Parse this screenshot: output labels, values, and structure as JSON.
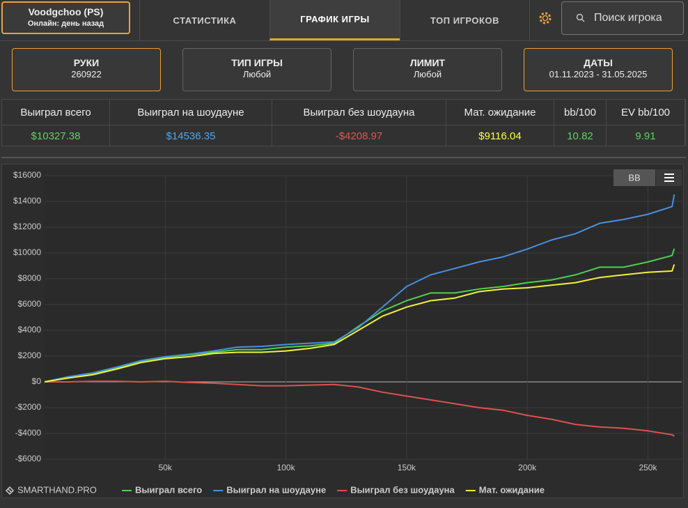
{
  "header": {
    "player": "Voodgchoo (PS)",
    "status": "Онлайн: день назад",
    "tabs": [
      "СТАТИСТИКА",
      "ГРАФИК ИГРЫ",
      "ТОП ИГРОКОВ"
    ],
    "search": "Поиск игрока"
  },
  "filters": [
    {
      "title": "РУКИ",
      "value": "260922"
    },
    {
      "title": "ТИП ИГРЫ",
      "value": "Любой"
    },
    {
      "title": "ЛИМИТ",
      "value": "Любой"
    },
    {
      "title": "ДАТЫ",
      "value": "01.11.2023 - 31.05.2025"
    }
  ],
  "table": {
    "headers": [
      "Выиграл всего",
      "Выиграл на шоудауне",
      "Выиграл без шоудауна",
      "Мат. ожидание",
      "bb/100",
      "EV bb/100"
    ],
    "values": [
      "$10327.38",
      "$14536.35",
      "-$4208.97",
      "$9116.04",
      "10.82",
      "9.91"
    ]
  },
  "controls": {
    "toggle": "BB"
  },
  "watermark": "SMARTHAND.PRO",
  "chart_data": {
    "type": "line",
    "x": [
      0,
      10000,
      20000,
      30000,
      40000,
      50000,
      60000,
      70000,
      80000,
      90000,
      100000,
      110000,
      120000,
      130000,
      140000,
      150000,
      160000,
      170000,
      180000,
      190000,
      200000,
      210000,
      220000,
      230000,
      240000,
      250000,
      260000,
      260922
    ],
    "series": [
      {
        "name": "Выиграл всего",
        "color": "#4fd14f",
        "values": [
          0,
          400,
          650,
          1100,
          1600,
          1900,
          2100,
          2300,
          2500,
          2500,
          2700,
          2800,
          3000,
          4300,
          5500,
          6300,
          6900,
          6900,
          7200,
          7400,
          7700,
          7900,
          8300,
          8900,
          8900,
          9300,
          9800,
          10327.38
        ]
      },
      {
        "name": "Выиграл на шоудауне",
        "color": "#4a8fe0",
        "values": [
          0,
          400,
          700,
          1150,
          1650,
          1950,
          2150,
          2400,
          2700,
          2750,
          2900,
          3000,
          3100,
          4200,
          5800,
          7400,
          8300,
          8800,
          9300,
          9700,
          10300,
          11000,
          11500,
          12300,
          12600,
          13000,
          13600,
          14536.35
        ]
      },
      {
        "name": "Выиграл без шоудауна",
        "color": "#e05050",
        "values": [
          0,
          0,
          50,
          50,
          0,
          50,
          -50,
          -100,
          -200,
          -300,
          -300,
          -250,
          -200,
          -400,
          -800,
          -1100,
          -1400,
          -1700,
          -2000,
          -2200,
          -2600,
          -2900,
          -3300,
          -3500,
          -3600,
          -3800,
          -4100,
          -4208.97
        ]
      },
      {
        "name": "Мат. ожидание",
        "color": "#f2f23c",
        "values": [
          0,
          300,
          550,
          1000,
          1500,
          1800,
          1950,
          2200,
          2300,
          2300,
          2400,
          2600,
          2900,
          4000,
          5100,
          5800,
          6300,
          6500,
          7000,
          7200,
          7300,
          7500,
          7700,
          8100,
          8300,
          8500,
          8600,
          9116.04
        ]
      }
    ],
    "xlim": [
      0,
      264000
    ],
    "xticks": [
      {
        "value": 50000,
        "label": "50k"
      },
      {
        "value": 100000,
        "label": "100k"
      },
      {
        "value": 150000,
        "label": "150k"
      },
      {
        "value": 200000,
        "label": "200k"
      },
      {
        "value": 250000,
        "label": "250k"
      }
    ],
    "ylim": [
      -6000,
      16000
    ],
    "yticks": [
      {
        "value": -6000,
        "label": "-$6000"
      },
      {
        "value": -4000,
        "label": "-$4000"
      },
      {
        "value": -2000,
        "label": "-$2000"
      },
      {
        "value": 0,
        "label": "$0"
      },
      {
        "value": 2000,
        "label": "$2000"
      },
      {
        "value": 4000,
        "label": "$4000"
      },
      {
        "value": 6000,
        "label": "$6000"
      },
      {
        "value": 8000,
        "label": "$8000"
      },
      {
        "value": 10000,
        "label": "$10000"
      },
      {
        "value": 12000,
        "label": "$12000"
      },
      {
        "value": 14000,
        "label": "$14000"
      },
      {
        "value": 16000,
        "label": "$16000"
      }
    ],
    "grid": true
  }
}
